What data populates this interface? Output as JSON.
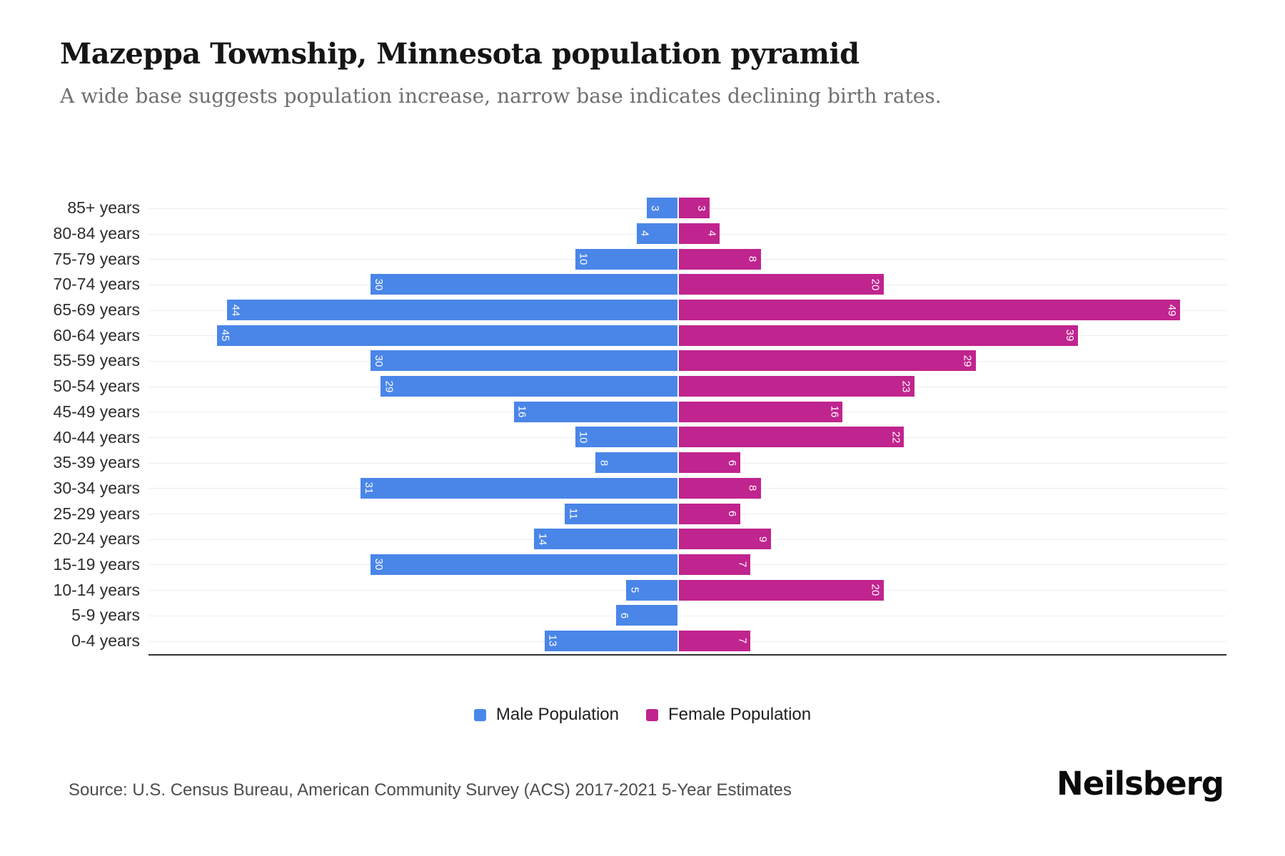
{
  "header": {
    "title": "Mazeppa Township, Minnesota population pyramid",
    "subtitle": "A wide base suggests population increase, narrow base indicates declining birth rates."
  },
  "chart_data": {
    "type": "bar",
    "variant": "population-pyramid",
    "orientation": "horizontal",
    "categories": [
      "85+ years",
      "80-84 years",
      "75-79 years",
      "70-74 years",
      "65-69 years",
      "60-64 years",
      "55-59 years",
      "50-54 years",
      "45-49 years",
      "40-44 years",
      "35-39 years",
      "30-34 years",
      "25-29 years",
      "20-24 years",
      "15-19 years",
      "10-14 years",
      "5-9 years",
      "0-4 years"
    ],
    "series": [
      {
        "name": "Male Population",
        "side": "left",
        "color": "#4A86E8",
        "values": [
          3,
          4,
          10,
          30,
          44,
          45,
          30,
          29,
          16,
          10,
          8,
          31,
          11,
          14,
          30,
          5,
          6,
          13
        ]
      },
      {
        "name": "Female Population",
        "side": "right",
        "color": "#C0248E",
        "values": [
          3,
          4,
          8,
          20,
          49,
          39,
          29,
          23,
          16,
          22,
          6,
          8,
          6,
          9,
          7,
          20,
          0,
          7
        ]
      }
    ],
    "title": "Mazeppa Township, Minnesota population pyramid",
    "xlabel": "",
    "ylabel": "",
    "value_axis_max_per_side": 53,
    "grid": "horizontal-row-lines",
    "legend_position": "bottom-center",
    "bar_value_labels": "inside-outer-end, rotated 90deg, white"
  },
  "legend": {
    "items": [
      {
        "label": "Male Population",
        "color": "#4A86E8"
      },
      {
        "label": "Female Population",
        "color": "#C0248E"
      }
    ]
  },
  "footer": {
    "source": "Source: U.S. Census Bureau, American Community Survey (ACS) 2017-2021 5-Year Estimates",
    "brand": "Neilsberg"
  }
}
